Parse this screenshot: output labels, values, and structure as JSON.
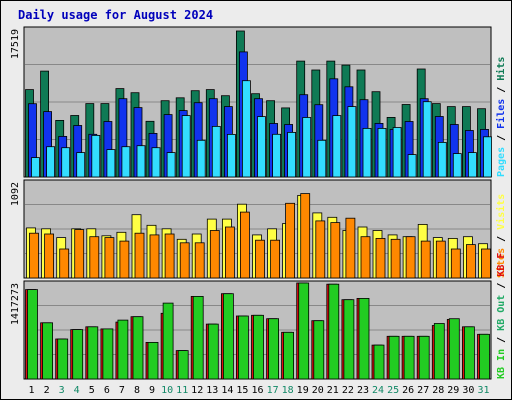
{
  "title": "Daily usage for August 2024",
  "colors": {
    "page_bg": "#ececec",
    "panel_bg": "#bfbfbf",
    "title": "#0000bb",
    "hits": "#0f7a55",
    "files": "#1133ee",
    "pages": "#33ddff",
    "visits": "#ffff44",
    "sites": "#ff8800",
    "kb_in": "#22cc22",
    "kb_out": "#22aa66",
    "kb_f": "#dd1111"
  },
  "chart_data": [
    {
      "type": "bar",
      "name": "hits-files-pages",
      "ylabel_max": "17519",
      "legend": [
        {
          "text": "Hits",
          "color": "#0f7a55"
        },
        {
          "text": "Files",
          "color": "#1133ee"
        },
        {
          "text": "Pages",
          "color": "#33ddff"
        }
      ],
      "categories": [
        "1",
        "2",
        "3",
        "4",
        "5",
        "6",
        "7",
        "8",
        "9",
        "10",
        "11",
        "12",
        "13",
        "14",
        "15",
        "16",
        "17",
        "18",
        "19",
        "20",
        "21",
        "22",
        "23",
        "24",
        "25",
        "26",
        "27",
        "28",
        "29",
        "30",
        "31"
      ],
      "ylim": [
        0,
        17519
      ],
      "series": [
        {
          "name": "Hits",
          "values": [
            10340,
            12530,
            6700,
            7280,
            8690,
            8690,
            10460,
            9980,
            6590,
            9030,
            9380,
            10220,
            10340,
            9620,
            17280,
            9860,
            9030,
            8180,
            13720,
            12660,
            13720,
            13240,
            12660,
            10100,
            7050,
            8580,
            12790,
            8690,
            8330,
            8330,
            8090
          ]
        },
        {
          "name": "Files",
          "values": [
            8680,
            7740,
            4810,
            6100,
            5050,
            6570,
            9270,
            8210,
            5160,
            7390,
            7860,
            8800,
            9270,
            8330,
            14810,
            9270,
            6330,
            6220,
            9740,
            8560,
            11630,
            10680,
            9150,
            6340,
            5630,
            6570,
            9270,
            7160,
            6220,
            5510,
            5630
          ]
        },
        {
          "name": "Pages",
          "values": [
            2300,
            3590,
            3470,
            2890,
            4930,
            3240,
            3590,
            3710,
            3470,
            2890,
            7270,
            4340,
            5990,
            5040,
            11400,
            7150,
            5050,
            5280,
            7040,
            4340,
            7270,
            8330,
            5750,
            5750,
            5860,
            2650,
            8910,
            4100,
            2770,
            2890,
            4760
          ]
        }
      ]
    },
    {
      "type": "bar",
      "name": "visits-sites",
      "ylabel_max": "1092",
      "legend": [
        {
          "text": "Visits",
          "color": "#ffff44"
        },
        {
          "text": "Sites",
          "color": "#ff8800"
        }
      ],
      "categories": [
        "1",
        "2",
        "3",
        "4",
        "5",
        "6",
        "7",
        "8",
        "9",
        "10",
        "11",
        "12",
        "13",
        "14",
        "15",
        "16",
        "17",
        "18",
        "19",
        "20",
        "21",
        "22",
        "23",
        "24",
        "25",
        "26",
        "27",
        "28",
        "29",
        "30",
        "31"
      ],
      "ylim": [
        0,
        1092
      ],
      "series": [
        {
          "name": "Visits",
          "values": [
            570,
            560,
            460,
            560,
            560,
            480,
            520,
            720,
            600,
            560,
            440,
            500,
            670,
            670,
            840,
            490,
            560,
            620,
            940,
            740,
            690,
            540,
            580,
            540,
            490,
            470,
            610,
            460,
            450,
            470,
            390
          ]
        },
        {
          "name": "Sites",
          "values": [
            510,
            500,
            330,
            550,
            470,
            460,
            420,
            510,
            490,
            500,
            400,
            400,
            540,
            580,
            750,
            430,
            430,
            850,
            960,
            650,
            630,
            680,
            470,
            450,
            440,
            470,
            420,
            420,
            330,
            380,
            330
          ]
        }
      ]
    },
    {
      "type": "bar",
      "name": "kb",
      "ylabel_max": "1417273",
      "legend": [
        {
          "text": "KB F",
          "color": "#dd1111"
        },
        {
          "text": "KB Out",
          "color": "#22aa66"
        },
        {
          "text": "KB In",
          "color": "#22cc22"
        }
      ],
      "categories": [
        "1",
        "2",
        "3",
        "4",
        "5",
        "6",
        "7",
        "8",
        "9",
        "10",
        "11",
        "12",
        "13",
        "14",
        "15",
        "16",
        "17",
        "18",
        "19",
        "20",
        "21",
        "22",
        "23",
        "24",
        "25",
        "26",
        "27",
        "28",
        "29",
        "30",
        "31"
      ],
      "ylim": [
        0,
        1417273
      ],
      "series": [
        {
          "name": "KB F",
          "values": [
            1320000,
            830000,
            590000,
            730000,
            770000,
            740000,
            840000,
            920000,
            540000,
            970000,
            420000,
            1220000,
            810000,
            1260000,
            930000,
            940000,
            890000,
            690000,
            1450000,
            860000,
            1400000,
            1170000,
            1190000,
            500000,
            630000,
            630000,
            630000,
            790000,
            880000,
            770000,
            660000
          ]
        },
        {
          "name": "KB In",
          "values": [
            1320000,
            830000,
            590000,
            730000,
            770000,
            740000,
            870000,
            920000,
            540000,
            1120000,
            420000,
            1220000,
            810000,
            1260000,
            930000,
            940000,
            890000,
            690000,
            1450000,
            860000,
            1400000,
            1170000,
            1190000,
            500000,
            630000,
            630000,
            630000,
            820000,
            890000,
            770000,
            660000
          ]
        }
      ]
    }
  ]
}
